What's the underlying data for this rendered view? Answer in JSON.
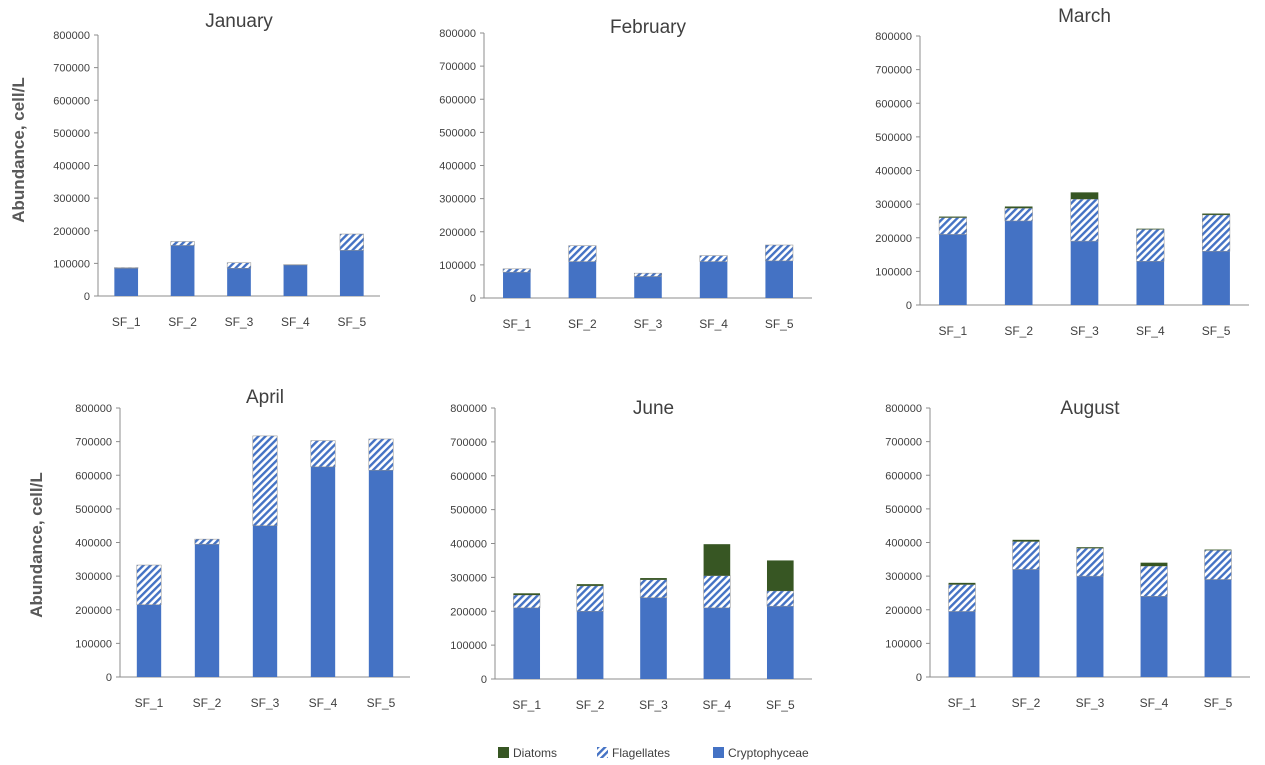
{
  "ylabel": "Abundance, cell/L",
  "colors": {
    "Diatoms": "#375623",
    "Flagellates": "#4472C4",
    "Cryptophyceae": "#4472C4",
    "axis": "#595959"
  },
  "legend": [
    {
      "name": "Diatoms",
      "pattern": "solid-dark-green"
    },
    {
      "name": "Flagellates",
      "pattern": "diagonal-hatch-blue"
    },
    {
      "name": "Cryptophyceae",
      "pattern": "solid-blue"
    }
  ],
  "chart_data": [
    {
      "type": "bar",
      "stacked": true,
      "title": "January",
      "categories": [
        "SF_1",
        "SF_2",
        "SF_3",
        "SF_4",
        "SF_5"
      ],
      "ylim": [
        0,
        800000
      ],
      "yticks": [
        0,
        100000,
        200000,
        300000,
        400000,
        500000,
        600000,
        700000,
        800000
      ],
      "grid": false,
      "series": [
        {
          "name": "Cryptophyceae",
          "values": [
            85000,
            155000,
            85000,
            95000,
            140000
          ]
        },
        {
          "name": "Flagellates",
          "values": [
            2000,
            12000,
            17000,
            1000,
            50000
          ]
        },
        {
          "name": "Diatoms",
          "values": [
            0,
            0,
            0,
            0,
            0
          ]
        }
      ]
    },
    {
      "type": "bar",
      "stacked": true,
      "title": "February",
      "categories": [
        "SF_1",
        "SF_2",
        "SF_3",
        "SF_4",
        "SF_5"
      ],
      "ylim": [
        0,
        800000
      ],
      "yticks": [
        0,
        100000,
        200000,
        300000,
        400000,
        500000,
        600000,
        700000,
        800000
      ],
      "grid": false,
      "series": [
        {
          "name": "Cryptophyceae",
          "values": [
            78000,
            110000,
            65000,
            110000,
            112000
          ]
        },
        {
          "name": "Flagellates",
          "values": [
            10000,
            48000,
            10000,
            18000,
            48000
          ]
        },
        {
          "name": "Diatoms",
          "values": [
            0,
            0,
            0,
            0,
            0
          ]
        }
      ]
    },
    {
      "type": "bar",
      "stacked": true,
      "title": "March",
      "categories": [
        "SF_1",
        "SF_2",
        "SF_3",
        "SF_4",
        "SF_5"
      ],
      "ylim": [
        0,
        800000
      ],
      "yticks": [
        0,
        100000,
        200000,
        300000,
        400000,
        500000,
        600000,
        700000,
        800000
      ],
      "grid": false,
      "series": [
        {
          "name": "Cryptophyceae",
          "values": [
            210000,
            250000,
            190000,
            130000,
            160000
          ]
        },
        {
          "name": "Flagellates",
          "values": [
            50000,
            38000,
            125000,
            95000,
            108000
          ]
        },
        {
          "name": "Diatoms",
          "values": [
            3000,
            5000,
            20000,
            2000,
            4000
          ]
        }
      ]
    },
    {
      "type": "bar",
      "stacked": true,
      "title": "April",
      "categories": [
        "SF_1",
        "SF_2",
        "SF_3",
        "SF_4",
        "SF_5"
      ],
      "ylim": [
        0,
        800000
      ],
      "yticks": [
        0,
        100000,
        200000,
        300000,
        400000,
        500000,
        600000,
        700000,
        800000
      ],
      "grid": false,
      "series": [
        {
          "name": "Cryptophyceae",
          "values": [
            215000,
            395000,
            450000,
            625000,
            615000
          ]
        },
        {
          "name": "Flagellates",
          "values": [
            118000,
            15000,
            267000,
            78000,
            93000
          ]
        },
        {
          "name": "Diatoms",
          "values": [
            0,
            0,
            0,
            0,
            0
          ]
        }
      ]
    },
    {
      "type": "bar",
      "stacked": true,
      "title": "June",
      "categories": [
        "SF_1",
        "SF_2",
        "SF_3",
        "SF_4",
        "SF_5"
      ],
      "ylim": [
        0,
        800000
      ],
      "yticks": [
        0,
        100000,
        200000,
        300000,
        400000,
        500000,
        600000,
        700000,
        800000
      ],
      "grid": false,
      "series": [
        {
          "name": "Cryptophyceae",
          "values": [
            210000,
            200000,
            240000,
            210000,
            215000
          ]
        },
        {
          "name": "Flagellates",
          "values": [
            38000,
            75000,
            53000,
            95000,
            45000
          ]
        },
        {
          "name": "Diatoms",
          "values": [
            5000,
            5000,
            5000,
            93000,
            90000
          ]
        }
      ]
    },
    {
      "type": "bar",
      "stacked": true,
      "title": "August",
      "categories": [
        "SF_1",
        "SF_2",
        "SF_3",
        "SF_4",
        "SF_5"
      ],
      "ylim": [
        0,
        800000
      ],
      "yticks": [
        0,
        100000,
        200000,
        300000,
        400000,
        500000,
        600000,
        700000,
        800000
      ],
      "grid": false,
      "series": [
        {
          "name": "Cryptophyceae",
          "values": [
            195000,
            320000,
            300000,
            240000,
            290000
          ]
        },
        {
          "name": "Flagellates",
          "values": [
            80000,
            83000,
            83000,
            90000,
            87000
          ]
        },
        {
          "name": "Diatoms",
          "values": [
            5000,
            5000,
            3000,
            10000,
            2000
          ]
        }
      ]
    }
  ]
}
